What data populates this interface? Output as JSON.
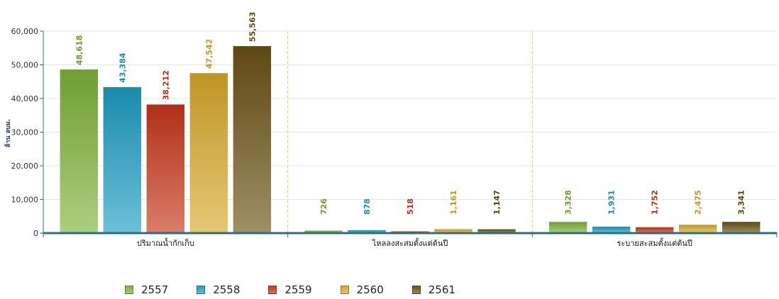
{
  "chart_data": {
    "type": "bar",
    "ylabel": "ล้าน ลบม.",
    "ylim": [
      0,
      60000
    ],
    "yticks": [
      "0",
      "10,000",
      "20,000",
      "30,000",
      "40,000",
      "50,000",
      "60,000"
    ],
    "categories": [
      "ปริมาณน้ำกักเก็บ",
      "ไหลลงสะสมตั้งแต่ต้นปี",
      "ระบายสะสมตั้งแต่ต้นปี"
    ],
    "series": [
      {
        "name": "2557",
        "color": "#7fb33a",
        "values": [
          48618,
          726,
          3328
        ],
        "labels": [
          "48,618",
          "726",
          "3,328"
        ]
      },
      {
        "name": "2558",
        "color": "#1e9ec4",
        "values": [
          43384,
          878,
          1931
        ],
        "labels": [
          "43,384",
          "878",
          "1,931"
        ]
      },
      {
        "name": "2559",
        "color": "#c7371a",
        "values": [
          38212,
          518,
          1752
        ],
        "labels": [
          "38,212",
          "518",
          "1,752"
        ]
      },
      {
        "name": "2560",
        "color": "#d9a92a",
        "values": [
          47542,
          1161,
          2475
        ],
        "labels": [
          "47,542",
          "1,161",
          "2,475"
        ]
      },
      {
        "name": "2561",
        "color": "#6b5214",
        "values": [
          55563,
          1147,
          3341
        ],
        "labels": [
          "55,563",
          "1,147",
          "3,341"
        ]
      }
    ],
    "label_colors": [
      "#6d9a2e",
      "#1b8db3",
      "#b3301a",
      "#c4961e",
      "#5a4510"
    ],
    "grid": true,
    "legend_position": "bottom"
  }
}
